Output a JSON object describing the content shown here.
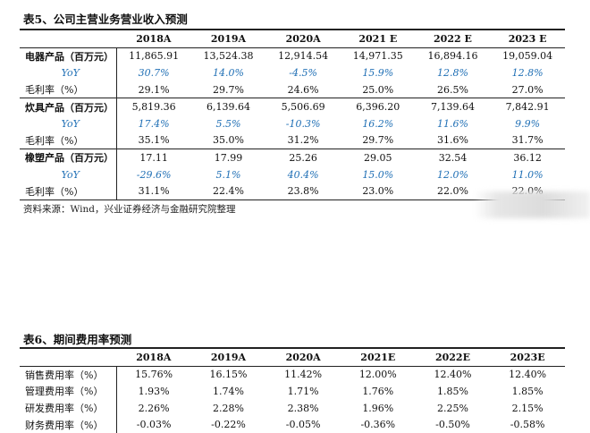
{
  "table5": {
    "caption": "表5、公司主营业务营业收入预测",
    "columns": [
      "",
      "2018A",
      "2019A",
      "2020A",
      "2021 E",
      "2022 E",
      "2023 E"
    ],
    "groups": [
      {
        "label": "电器产品（百万元）",
        "values": [
          "11,865.91",
          "13,524.38",
          "12,914.54",
          "14,971.35",
          "16,894.16",
          "19,059.04"
        ],
        "yoy_label": "YoY",
        "yoy": [
          "30.7%",
          "14.0%",
          "-4.5%",
          "15.9%",
          "12.8%",
          "12.8%"
        ],
        "margin_label": "毛利率（%）",
        "margin": [
          "29.1%",
          "29.7%",
          "24.6%",
          "25.0%",
          "26.5%",
          "27.0%"
        ]
      },
      {
        "label": "炊具产品（百万元）",
        "values": [
          "5,819.36",
          "6,139.64",
          "5,506.69",
          "6,396.20",
          "7,139.64",
          "7,842.91"
        ],
        "yoy_label": "YoY",
        "yoy": [
          "17.4%",
          "5.5%",
          "-10.3%",
          "16.2%",
          "11.6%",
          "9.9%"
        ],
        "margin_label": "毛利率（%）",
        "margin": [
          "35.1%",
          "35.0%",
          "31.2%",
          "29.7%",
          "31.6%",
          "31.7%"
        ]
      },
      {
        "label": "橡塑产品（百万元）",
        "values": [
          "17.11",
          "17.99",
          "25.26",
          "29.05",
          "32.54",
          "36.12"
        ],
        "yoy_label": "YoY",
        "yoy": [
          "-29.6%",
          "5.1%",
          "40.4%",
          "15.0%",
          "12.0%",
          "11.0%"
        ],
        "margin_label": "毛利率（%）",
        "margin": [
          "31.1%",
          "22.4%",
          "23.8%",
          "23.0%",
          "22.0%",
          "22.0%"
        ]
      }
    ],
    "source": "资料来源：Wind，兴业证券经济与金融研究院整理"
  },
  "table6": {
    "caption": "表6、期间费用率预测",
    "columns": [
      "",
      "2018A",
      "2019A",
      "2020A",
      "2021E",
      "2022E",
      "2023E"
    ],
    "rows": [
      {
        "label": "销售费用率（%）",
        "values": [
          "15.76%",
          "16.15%",
          "11.42%",
          "12.00%",
          "12.40%",
          "12.40%"
        ]
      },
      {
        "label": "管理费用率（%）",
        "values": [
          "1.93%",
          "1.74%",
          "1.71%",
          "1.76%",
          "1.85%",
          "1.85%"
        ]
      },
      {
        "label": "研发费用率（%）",
        "values": [
          "2.26%",
          "2.28%",
          "2.38%",
          "1.96%",
          "2.25%",
          "2.15%"
        ]
      },
      {
        "label": "财务费用率（%）",
        "values": [
          "-0.03%",
          "-0.22%",
          "-0.05%",
          "-0.36%",
          "-0.50%",
          "-0.58%"
        ]
      }
    ]
  }
}
